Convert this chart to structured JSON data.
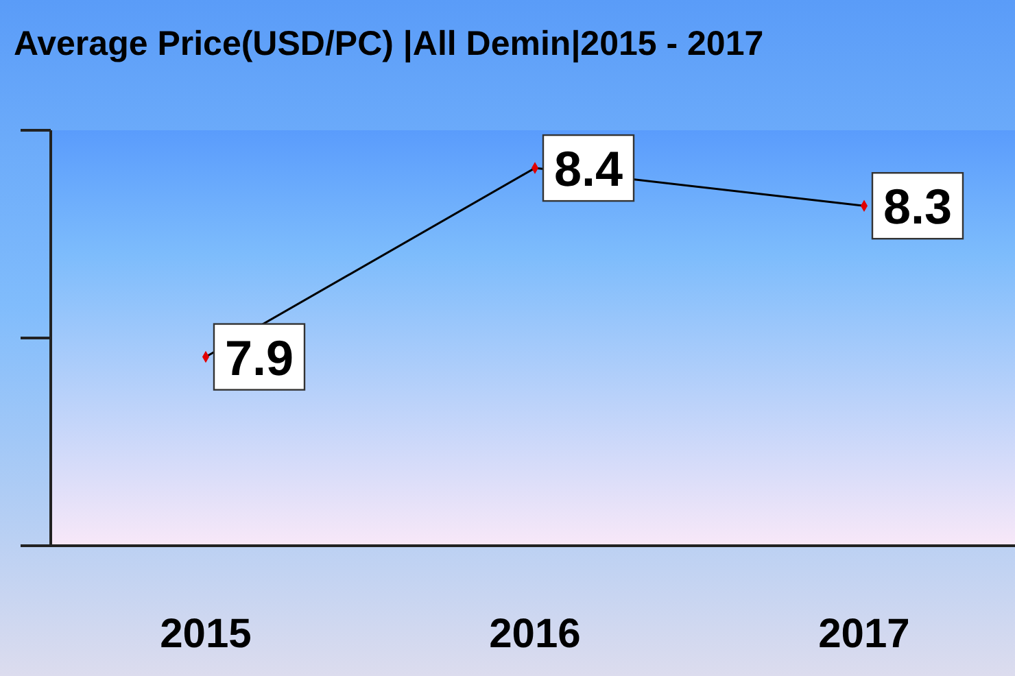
{
  "chart_data": {
    "type": "line",
    "title": "Average Price(USD/PC)  |All Demin|2015 - 2017",
    "categories": [
      "2015",
      "2016",
      "2017"
    ],
    "series": [
      {
        "color": "#000000",
        "values": [
          7.9,
          8.4,
          8.3
        ]
      }
    ],
    "ylim": [
      7.4,
      8.5
    ],
    "tick_labels": "x",
    "data_labels": true,
    "marker": "diamond"
  }
}
